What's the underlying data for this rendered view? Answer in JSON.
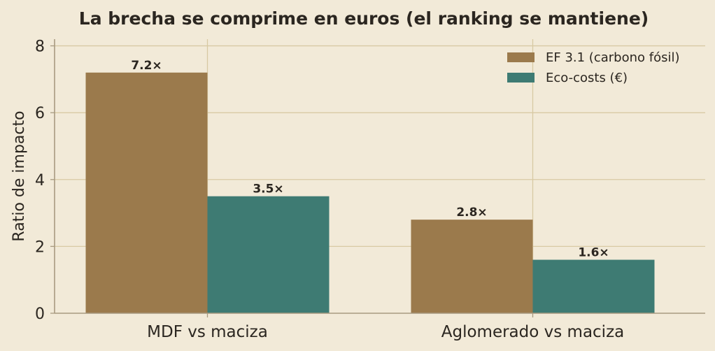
{
  "chart_data": {
    "type": "bar",
    "title": "La brecha se comprime en euros (el ranking se mantiene)",
    "xlabel": "",
    "ylabel": "Ratio de impacto",
    "categories": [
      "MDF vs maciza",
      "Aglomerado vs maciza"
    ],
    "series": [
      {
        "name": "EF 3.1 (carbono fósil)",
        "color": "#9b7a4c",
        "values": [
          7.2,
          2.8
        ],
        "labels": [
          "7.2×",
          "2.8×"
        ]
      },
      {
        "name": "Eco-costs (€)",
        "color": "#3e7b73",
        "values": [
          3.5,
          1.6
        ],
        "labels": [
          "3.5×",
          "1.6×"
        ]
      }
    ],
    "ylim": [
      0,
      8.2
    ],
    "yticks": [
      0,
      2,
      4,
      6,
      8
    ],
    "grid": true,
    "legend_position": "top-right",
    "colors": {
      "background": "#f2ead8",
      "grid": "#d8c9a3",
      "axis": "#a89a80",
      "text": "#2b2620"
    }
  }
}
